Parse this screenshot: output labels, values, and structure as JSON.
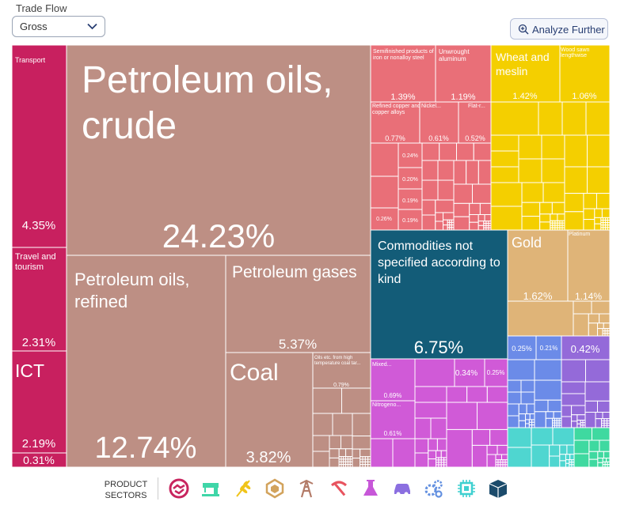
{
  "controls": {
    "trade_flow_label": "Trade Flow",
    "trade_flow_value": "Gross",
    "analyze_label": "Analyze Further"
  },
  "legend": {
    "label_line1": "PRODUCT",
    "label_line2": "SECTORS",
    "sectors": [
      {
        "icon": "services-handshake-icon",
        "color": "#c8255f"
      },
      {
        "icon": "textiles-sewing-machine-icon",
        "color": "#3fd6a8"
      },
      {
        "icon": "agriculture-wheat-icon",
        "color": "#f0c419"
      },
      {
        "icon": "stone-gem-icon",
        "color": "#d2a35c"
      },
      {
        "icon": "minerals-oil-rig-icon",
        "color": "#b37b68"
      },
      {
        "icon": "metals-pick-axe-icon",
        "color": "#e8545f"
      },
      {
        "icon": "chemicals-flask-icon",
        "color": "#c757d8"
      },
      {
        "icon": "vehicles-car-icon",
        "color": "#8b6fe0"
      },
      {
        "icon": "machinery-gears-icon",
        "color": "#6390e0"
      },
      {
        "icon": "electronics-chip-icon",
        "color": "#3fd0d0"
      },
      {
        "icon": "other-box-icon",
        "color": "#1b4b6b"
      }
    ]
  },
  "chart_data": {
    "type": "treemap",
    "colors": {
      "services": "#c8205f",
      "minerals": "#bd8f84",
      "metals": "#e96f78",
      "agriculture": "#f4cf00",
      "other": "#135c78",
      "stone": "#dfb478",
      "machinery": "#6b8be8",
      "vehicles": "#946ad9",
      "chemicals": "#d05ad7",
      "electronics": "#4fd6d0",
      "textiles": "#3fd9a0"
    },
    "items": [
      {
        "name": "Transport",
        "value": "4.35%",
        "sector": "services"
      },
      {
        "name": "Travel and tourism",
        "value": "2.31%",
        "sector": "services"
      },
      {
        "name": "ICT",
        "value": "2.19%",
        "sector": "services"
      },
      {
        "name": "",
        "value": "0.31%",
        "sector": "services"
      },
      {
        "name": "Petroleum oils, crude",
        "value": "24.23%",
        "sector": "minerals"
      },
      {
        "name": "Petroleum oils, refined",
        "value": "12.74%",
        "sector": "minerals"
      },
      {
        "name": "Petroleum gases",
        "value": "5.37%",
        "sector": "minerals"
      },
      {
        "name": "Coal",
        "value": "3.82%",
        "sector": "minerals"
      },
      {
        "name": "Oils etc. from high temperature coal tar...",
        "value": "0.79%",
        "sector": "minerals"
      },
      {
        "name": "Semifinished products of iron or nonalloy steel",
        "value": "1.39%",
        "sector": "metals"
      },
      {
        "name": "Unwrought aluminum",
        "value": "1.19%",
        "sector": "metals"
      },
      {
        "name": "Refined copper and copper alloys",
        "value": "0.77%",
        "sector": "metals"
      },
      {
        "name": "Nickel...",
        "value": "0.61%",
        "sector": "metals"
      },
      {
        "name": "Flat-r...",
        "value": "0.52%",
        "sector": "metals"
      },
      {
        "name": "",
        "value": "0.24%",
        "sector": "metals"
      },
      {
        "name": "",
        "value": "0.20%",
        "sector": "metals"
      },
      {
        "name": "",
        "value": "0.19%",
        "sector": "metals"
      },
      {
        "name": "",
        "value": "0.26%",
        "sector": "metals"
      },
      {
        "name": "",
        "value": "0.19%",
        "sector": "metals"
      },
      {
        "name": "Wheat and meslin",
        "value": "1.42%",
        "sector": "agriculture"
      },
      {
        "name": "Wood sawn lengthwise",
        "value": "1.06%",
        "sector": "agriculture"
      },
      {
        "name": "Commodities not specified according to kind",
        "value": "6.75%",
        "sector": "other"
      },
      {
        "name": "Gold",
        "value": "1.62%",
        "sector": "stone"
      },
      {
        "name": "Platinum",
        "value": "1.14%",
        "sector": "stone"
      },
      {
        "name": "",
        "value": "0.25%",
        "sector": "machinery"
      },
      {
        "name": "",
        "value": "0.21%",
        "sector": "machinery"
      },
      {
        "name": "",
        "value": "0.42%",
        "sector": "vehicles"
      },
      {
        "name": "Mixed...",
        "value": "0.69%",
        "sector": "chemicals"
      },
      {
        "name": "Nitrogeno...",
        "value": "0.61%",
        "sector": "chemicals"
      },
      {
        "name": "",
        "value": "0.34%",
        "sector": "chemicals"
      },
      {
        "name": "",
        "value": "0.25%",
        "sector": "chemicals"
      }
    ]
  }
}
